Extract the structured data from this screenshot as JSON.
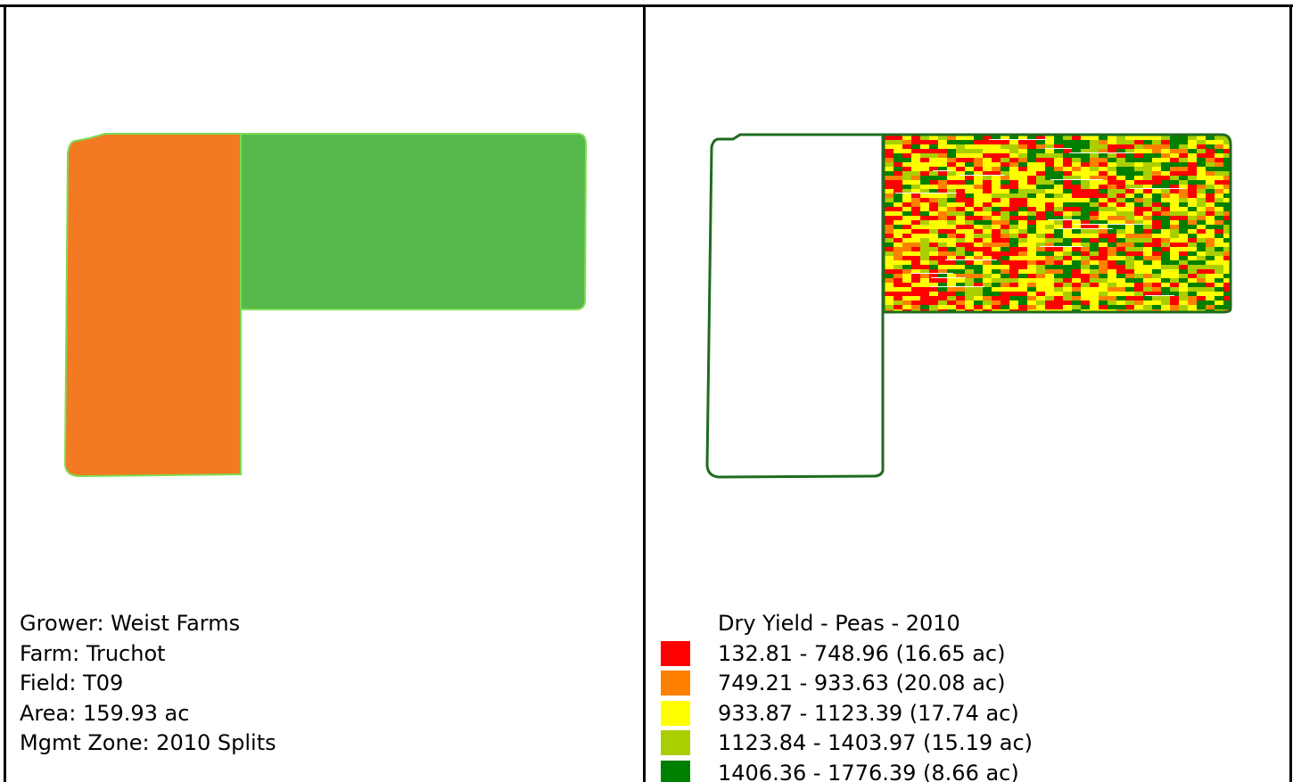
{
  "field_info": {
    "grower": "Grower: Weist Farms",
    "farm": "Farm: Truchot",
    "field": "Field: T09",
    "area": "Area: 159.93 ac",
    "mgmt_zone": "Mgmt Zone: 2010 Splits"
  },
  "zones": {
    "west_zone_color": "#F37A22",
    "east_zone_color": "#57B84C",
    "zone_outline_color": "#7DDC50",
    "yield_outline_color": "#1F6B1F"
  },
  "legend": {
    "title": "Dry Yield - Peas - 2010",
    "items": [
      {
        "label": "132.81 - 748.96 (16.65 ac)",
        "color": "#FF0000"
      },
      {
        "label": "749.21 - 933.63 (20.08 ac)",
        "color": "#FF8000"
      },
      {
        "label": "933.87 - 1123.39 (17.74 ac)",
        "color": "#FFFF00"
      },
      {
        "label": "1123.84 - 1403.97 (15.19 ac)",
        "color": "#AACF00"
      },
      {
        "label": "1406.36 - 1776.39 (8.66 ac)",
        "color": "#008000"
      }
    ]
  }
}
